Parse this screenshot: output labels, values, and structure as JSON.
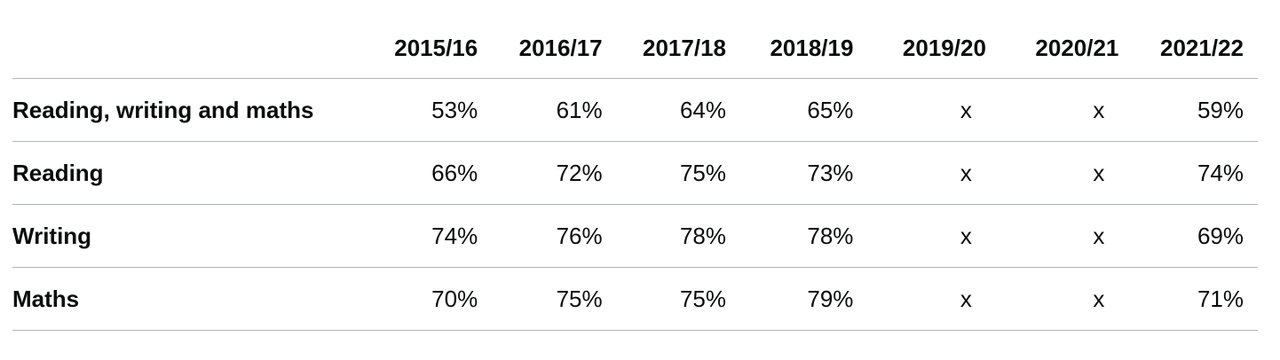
{
  "table": {
    "columns": [
      "",
      "2015/16",
      "2016/17",
      "2017/18",
      "2018/19",
      "2019/20",
      "2020/21",
      "2021/22"
    ],
    "rows": [
      {
        "label": "Reading, writing and maths",
        "values": [
          "53%",
          "61%",
          "64%",
          "65%",
          "x",
          "x",
          "59%"
        ]
      },
      {
        "label": "Reading",
        "values": [
          "66%",
          "72%",
          "75%",
          "73%",
          "x",
          "x",
          "74%"
        ]
      },
      {
        "label": "Writing",
        "values": [
          "74%",
          "76%",
          "78%",
          "78%",
          "x",
          "x",
          "69%"
        ]
      },
      {
        "label": "Maths",
        "values": [
          "70%",
          "75%",
          "75%",
          "79%",
          "x",
          "x",
          "71%"
        ]
      }
    ]
  }
}
